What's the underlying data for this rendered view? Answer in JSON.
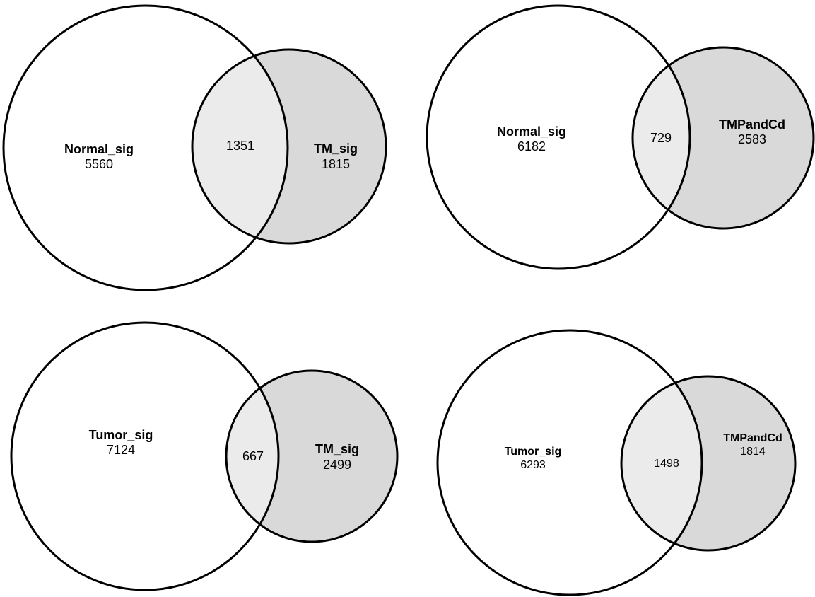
{
  "colors": {
    "background": "#ffffff",
    "big_only": "#ffffff",
    "overlap": "#ebebeb",
    "small_only": "#d9d9d9",
    "outline": "#000000"
  },
  "diagrams": [
    {
      "left_set": {
        "name": "Normal_sig",
        "only_count": "5560"
      },
      "overlap_count": "1351",
      "right_set": {
        "name": "TM_sig",
        "only_count": "1815"
      }
    },
    {
      "left_set": {
        "name": "Normal_sig",
        "only_count": "6182"
      },
      "overlap_count": "729",
      "right_set": {
        "name": "TMPandCd",
        "only_count": "2583"
      }
    },
    {
      "left_set": {
        "name": "Tumor_sig",
        "only_count": "7124"
      },
      "overlap_count": "667",
      "right_set": {
        "name": "TM_sig",
        "only_count": "2499"
      }
    },
    {
      "left_set": {
        "name": "Tumor_sig",
        "only_count": "6293"
      },
      "overlap_count": "1498",
      "right_set": {
        "name": "TMPandCd",
        "only_count": "1814"
      }
    }
  ]
}
